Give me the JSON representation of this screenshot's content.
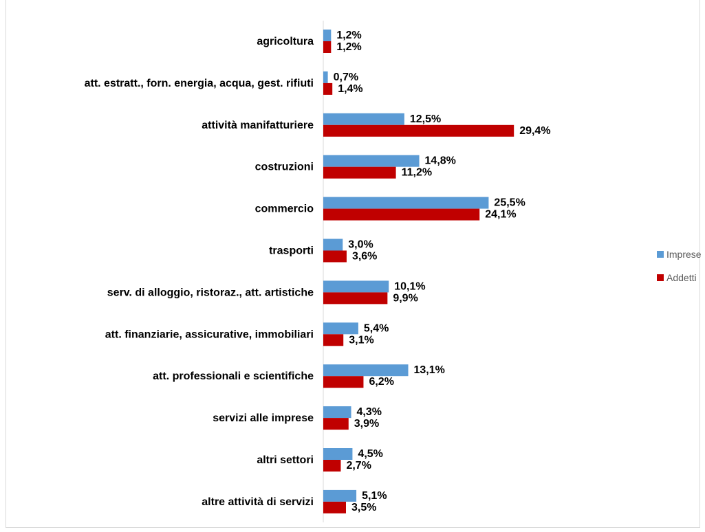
{
  "chart_data": {
    "type": "bar",
    "orientation": "horizontal",
    "title": "",
    "xlabel": "",
    "ylabel": "",
    "categories": [
      "agricoltura",
      "att. estratt., forn. energia, acqua, gest. rifiuti",
      "attività manifatturiere",
      "costruzioni",
      "commercio",
      "trasporti",
      "serv. di alloggio, ristoraz., att. artistiche",
      "att. finanziarie, assicurative, immobiliari",
      "att. professionali e scientifiche",
      "servizi alle imprese",
      "altri settori",
      "altre attività di servizi"
    ],
    "series": [
      {
        "name": "Imprese",
        "color": "#5b9bd5",
        "values": [
          1.2,
          0.7,
          12.5,
          14.8,
          25.5,
          3.0,
          10.1,
          5.4,
          13.1,
          4.3,
          4.5,
          5.1
        ],
        "labels": [
          "1,2%",
          "0,7%",
          "12,5%",
          "14,8%",
          "25,5%",
          "3,0%",
          "10,1%",
          "5,4%",
          "13,1%",
          "4,3%",
          "4,5%",
          "5,1%"
        ]
      },
      {
        "name": "Addetti",
        "color": "#c00000",
        "values": [
          1.2,
          1.4,
          29.4,
          11.2,
          24.1,
          3.6,
          9.9,
          3.1,
          6.2,
          3.9,
          2.7,
          3.5
        ],
        "labels": [
          "1,2%",
          "1,4%",
          "29,4%",
          "11,2%",
          "24,1%",
          "3,6%",
          "9,9%",
          "3,1%",
          "6,2%",
          "3,9%",
          "2,7%",
          "3,5%"
        ]
      }
    ],
    "xlim": [
      0,
      35
    ],
    "grid": false,
    "legend_position": "right"
  }
}
